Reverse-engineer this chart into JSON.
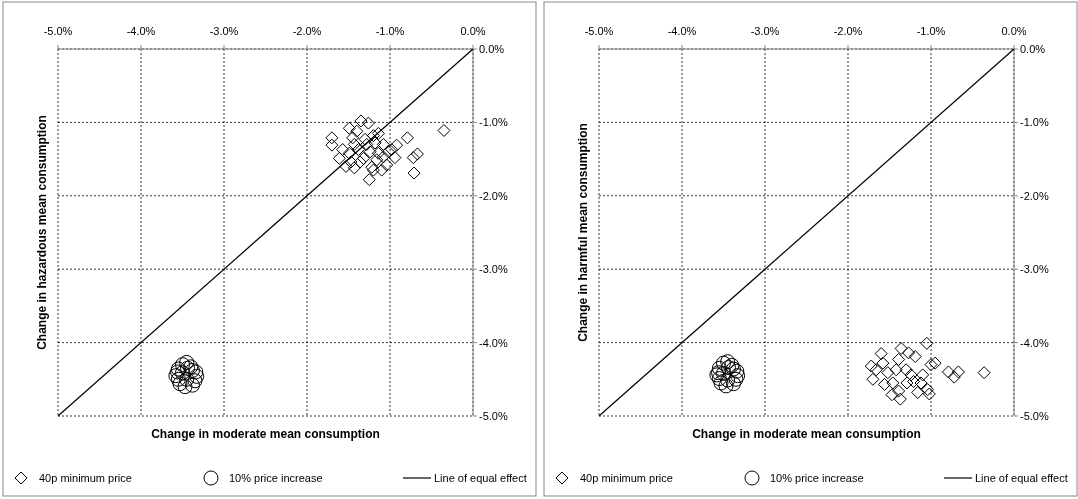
{
  "chart_data": [
    {
      "type": "scatter",
      "xlabel": "Change in moderate mean consumption",
      "ylabel": "Change in hazardous mean consumption",
      "xlim": [
        -5,
        0
      ],
      "ylim": [
        -5,
        0
      ],
      "xticks": [
        {
          "value": -5,
          "label": "-5.0%"
        },
        {
          "value": -4,
          "label": "-4.0%"
        },
        {
          "value": -3,
          "label": "-3.0%"
        },
        {
          "value": -2,
          "label": "-2.0%"
        },
        {
          "value": -1,
          "label": "-1.0%"
        },
        {
          "value": 0,
          "label": "0.0%"
        }
      ],
      "yticks": [
        {
          "value": 0,
          "label": "0.0%"
        },
        {
          "value": -1,
          "label": "-1.0%"
        },
        {
          "value": -2,
          "label": "-2.0%"
        },
        {
          "value": -3,
          "label": "-3.0%"
        },
        {
          "value": -4,
          "label": "-4.0%"
        },
        {
          "value": -5,
          "label": "-5.0%"
        }
      ],
      "grid": true,
      "legend": "bottom",
      "series": [
        {
          "name": "40p minimum price",
          "type": "scatter",
          "marker": "diamond",
          "color": "#000000",
          "x": [
            -1.35,
            -1.26,
            -0.35,
            -0.79,
            -1.49,
            -1.7,
            -1.7,
            -0.67,
            -0.72,
            -0.71,
            -1.25,
            -1.61,
            -1.53,
            -1.43,
            -1.1,
            -1.04,
            -0.94,
            -0.92,
            -0.98,
            -1.08,
            -1.14,
            -1.2,
            -1.4,
            -1.45,
            -1.57,
            -1.49,
            -1.38,
            -1.28,
            -1.24,
            -1.32,
            -1.36,
            -1.22,
            -1.16,
            -1.14,
            -1.08,
            -1.02,
            -1.43,
            -1.3,
            -1.18,
            -1.2,
            -1.47
          ],
          "values": [
            -0.98,
            -1.01,
            -1.11,
            -1.21,
            -1.08,
            -1.21,
            -1.31,
            -1.43,
            -1.48,
            -1.69,
            -1.78,
            -1.49,
            -1.6,
            -1.62,
            -1.65,
            -1.58,
            -1.48,
            -1.31,
            -1.37,
            -1.3,
            -1.15,
            -1.18,
            -1.12,
            -1.21,
            -1.37,
            -1.42,
            -1.37,
            -1.3,
            -1.4,
            -1.49,
            -1.54,
            -1.61,
            -1.51,
            -1.42,
            -1.47,
            -1.4,
            -1.3,
            -1.23,
            -1.28,
            -1.65,
            -1.54
          ]
        },
        {
          "name": "10% price increase",
          "type": "scatter",
          "marker": "circle",
          "color": "#000000",
          "x": [
            -3.5,
            -3.45,
            -3.4,
            -3.55,
            -3.33,
            -3.58,
            -3.35,
            -3.55,
            -3.38,
            -3.47,
            -3.53,
            -3.44,
            -3.38,
            -3.5,
            -3.34,
            -3.56,
            -3.45
          ],
          "values": [
            -4.3,
            -4.27,
            -4.33,
            -4.36,
            -4.46,
            -4.45,
            -4.52,
            -4.5,
            -4.58,
            -4.6,
            -4.56,
            -4.35,
            -4.38,
            -4.41,
            -4.4,
            -4.4,
            -4.5
          ]
        },
        {
          "name": "Line of equal effect",
          "type": "line",
          "marker": "none",
          "line_style": "solid",
          "color": "#000000",
          "x": [
            -5,
            0
          ],
          "values": [
            -5,
            0
          ]
        }
      ]
    },
    {
      "type": "scatter",
      "xlabel": "Change in moderate mean consumption",
      "ylabel": "Change in harmful mean consumption",
      "xlim": [
        -5,
        0
      ],
      "ylim": [
        -5,
        0
      ],
      "xticks": [
        {
          "value": -5,
          "label": "-5.0%"
        },
        {
          "value": -4,
          "label": "-4.0%"
        },
        {
          "value": -3,
          "label": "-3.0%"
        },
        {
          "value": -2,
          "label": "-2.0%"
        },
        {
          "value": -1,
          "label": "-1.0%"
        },
        {
          "value": 0,
          "label": "0.0%"
        }
      ],
      "yticks": [
        {
          "value": 0,
          "label": "0.0%"
        },
        {
          "value": -1,
          "label": "-1.0%"
        },
        {
          "value": -2,
          "label": "-2.0%"
        },
        {
          "value": -3,
          "label": "-3.0%"
        },
        {
          "value": -4,
          "label": "-4.0%"
        },
        {
          "value": -5,
          "label": "-5.0%"
        }
      ],
      "grid": true,
      "legend": "bottom",
      "series": [
        {
          "name": "40p minimum price",
          "type": "scatter",
          "marker": "diamond",
          "color": "#000000",
          "x": [
            -0.36,
            -0.67,
            -0.72,
            -0.79,
            -1.0,
            -0.95,
            -1.02,
            -1.12,
            -1.16,
            -1.24,
            -1.29,
            -1.37,
            -1.39,
            -1.46,
            -1.52,
            -1.66,
            -1.72,
            -1.7,
            -1.58,
            -1.39,
            -1.27,
            -1.19,
            -1.42,
            -1.3,
            -1.21,
            -1.1,
            -1.04,
            -1.56,
            -1.47,
            -1.36,
            -1.05,
            -1.6
          ],
          "values": [
            -4.41,
            -4.4,
            -4.47,
            -4.4,
            -4.3,
            -4.28,
            -4.7,
            -4.55,
            -4.68,
            -4.44,
            -4.55,
            -4.77,
            -4.66,
            -4.55,
            -4.41,
            -4.37,
            -4.32,
            -4.5,
            -4.28,
            -4.23,
            -4.14,
            -4.19,
            -4.37,
            -4.37,
            -4.53,
            -4.44,
            -4.64,
            -4.57,
            -4.71,
            -4.08,
            -4.01,
            -4.15
          ]
        },
        {
          "name": "10% price increase",
          "type": "scatter",
          "marker": "circle",
          "color": "#000000",
          "x": [
            -3.5,
            -3.45,
            -3.4,
            -3.55,
            -3.33,
            -3.58,
            -3.35,
            -3.55,
            -3.38,
            -3.47,
            -3.53,
            -3.44,
            -3.38,
            -3.5,
            -3.34,
            -3.56,
            -3.45
          ],
          "values": [
            -4.28,
            -4.26,
            -4.31,
            -4.35,
            -4.45,
            -4.44,
            -4.5,
            -4.49,
            -4.56,
            -4.59,
            -4.55,
            -4.34,
            -4.36,
            -4.42,
            -4.39,
            -4.41,
            -4.51
          ]
        },
        {
          "name": "Line of equal effect",
          "type": "line",
          "marker": "none",
          "line_style": "solid",
          "color": "#000000",
          "x": [
            -5,
            0
          ],
          "values": [
            -5,
            0
          ]
        }
      ]
    }
  ]
}
